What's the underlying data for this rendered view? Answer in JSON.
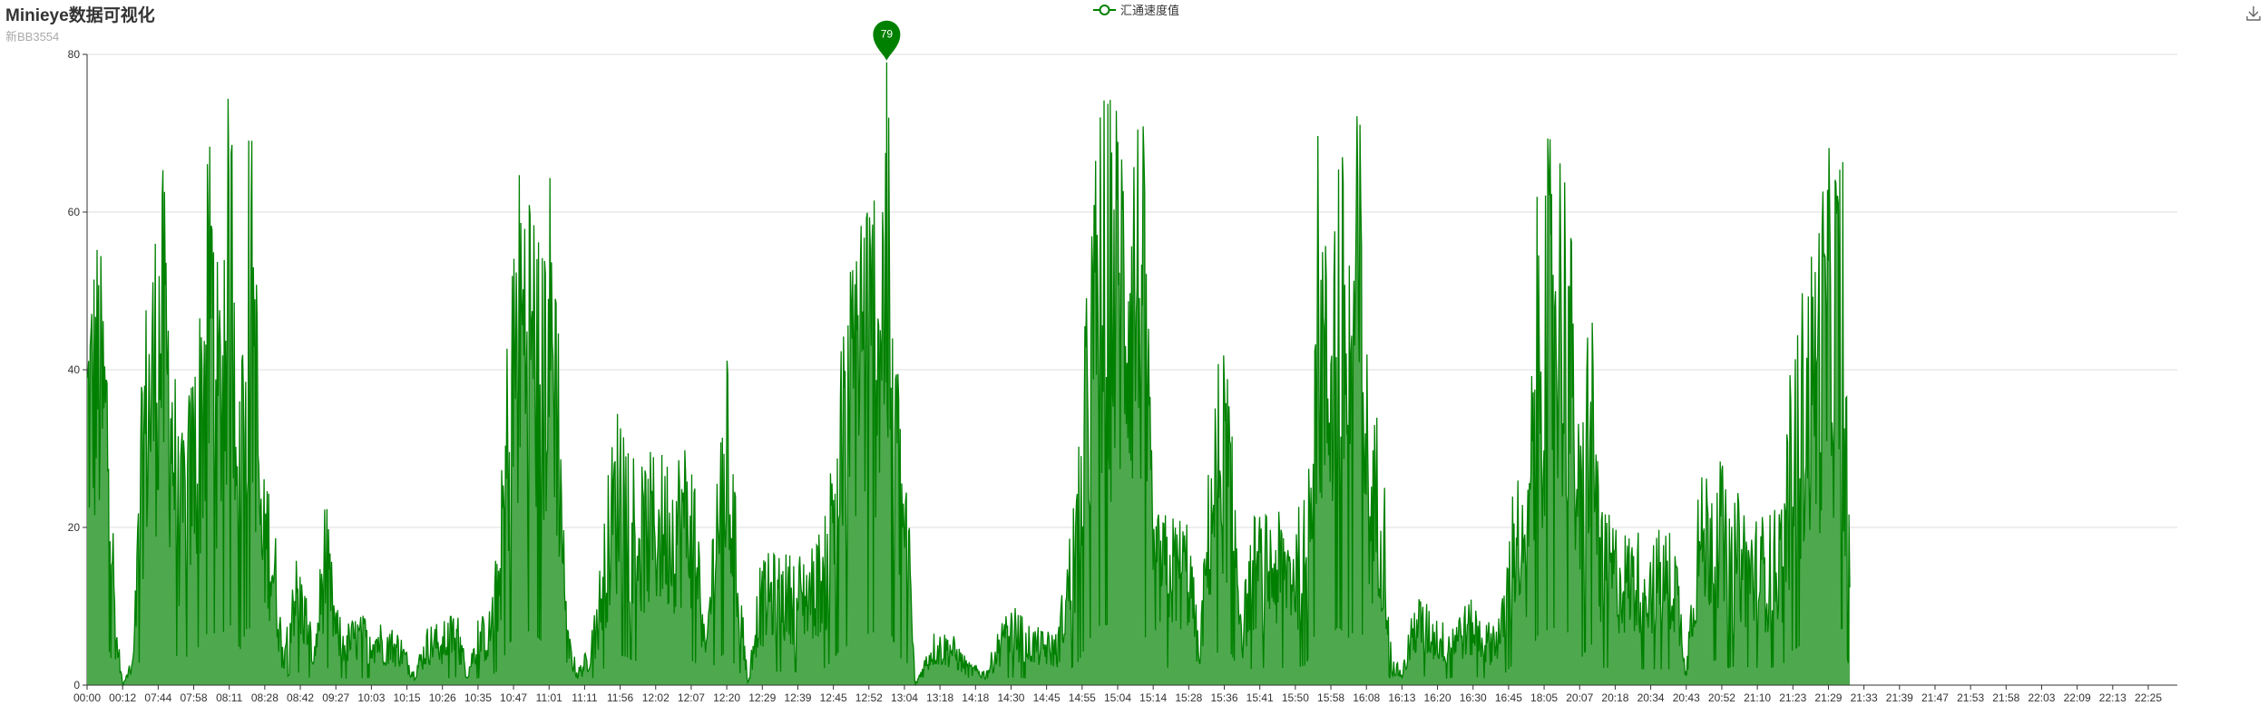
{
  "title": "Minieye数据可视化",
  "subtitle": "新BB3554",
  "legend": {
    "label": "汇通速度值"
  },
  "toolbox": {
    "icon": "download-icon"
  },
  "colors": {
    "line": "#008000",
    "area": "#4ea94e",
    "grid": "#dddddd",
    "axis": "#333333"
  },
  "chart_data": {
    "type": "area",
    "title": "Minieye数据可视化",
    "subtitle": "新BB3554",
    "series": [
      {
        "name": "汇通速度值"
      }
    ],
    "ylim": [
      0,
      80
    ],
    "yticks": [
      0,
      20,
      40,
      60,
      80
    ],
    "grid": "horizontal",
    "legend_position": "top-center",
    "x_ticks": [
      "00:00",
      "00:12",
      "07:44",
      "07:58",
      "08:11",
      "08:28",
      "08:42",
      "09:27",
      "10:03",
      "10:15",
      "10:26",
      "10:35",
      "10:47",
      "11:01",
      "11:11",
      "11:56",
      "12:02",
      "12:07",
      "12:20",
      "12:29",
      "12:39",
      "12:45",
      "12:52",
      "13:04",
      "13:18",
      "14:18",
      "14:30",
      "14:45",
      "14:55",
      "15:04",
      "15:14",
      "15:28",
      "15:36",
      "15:41",
      "15:50",
      "15:58",
      "16:08",
      "16:13",
      "16:20",
      "16:30",
      "16:45",
      "18:05",
      "20:07",
      "20:18",
      "20:34",
      "20:43",
      "20:52",
      "21:10",
      "21:23",
      "21:29",
      "21:33",
      "21:39",
      "21:47",
      "21:53",
      "21:58",
      "22:03",
      "22:09",
      "22:13",
      "22:25"
    ],
    "envelope": [
      [
        0,
        52
      ],
      [
        0.3,
        59
      ],
      [
        0.6,
        47
      ],
      [
        0.8,
        10
      ],
      [
        1.0,
        0
      ],
      [
        1.3,
        4
      ],
      [
        1.6,
        48
      ],
      [
        1.9,
        60
      ],
      [
        2.1,
        68
      ],
      [
        2.3,
        57
      ],
      [
        2.6,
        30
      ],
      [
        2.9,
        39
      ],
      [
        3.2,
        51
      ],
      [
        3.5,
        76
      ],
      [
        3.7,
        50
      ],
      [
        3.9,
        75
      ],
      [
        4.1,
        76
      ],
      [
        4.3,
        44
      ],
      [
        4.5,
        73
      ],
      [
        4.7,
        70
      ],
      [
        4.9,
        26
      ],
      [
        5.1,
        28
      ],
      [
        5.3,
        20
      ],
      [
        5.5,
        5
      ],
      [
        5.8,
        18
      ],
      [
        6.1,
        14
      ],
      [
        6.4,
        5
      ],
      [
        6.7,
        25
      ],
      [
        7.0,
        10
      ],
      [
        7.3,
        8
      ],
      [
        7.6,
        9
      ],
      [
        8.0,
        9
      ],
      [
        8.4,
        8
      ],
      [
        8.8,
        7
      ],
      [
        9.2,
        2
      ],
      [
        9.6,
        8
      ],
      [
        10.0,
        8
      ],
      [
        10.4,
        10
      ],
      [
        10.7,
        2
      ],
      [
        11.0,
        9
      ],
      [
        11.3,
        9
      ],
      [
        11.6,
        20
      ],
      [
        11.9,
        55
      ],
      [
        12.2,
        69
      ],
      [
        12.5,
        68
      ],
      [
        12.8,
        55
      ],
      [
        13.0,
        68
      ],
      [
        13.2,
        60
      ],
      [
        13.5,
        8
      ],
      [
        13.8,
        2
      ],
      [
        14.1,
        5
      ],
      [
        14.4,
        14
      ],
      [
        14.7,
        29
      ],
      [
        15.0,
        39
      ],
      [
        15.3,
        33
      ],
      [
        15.6,
        28
      ],
      [
        15.9,
        30
      ],
      [
        16.2,
        30
      ],
      [
        16.5,
        30
      ],
      [
        16.8,
        32
      ],
      [
        17.1,
        30
      ],
      [
        17.4,
        5
      ],
      [
        17.7,
        30
      ],
      [
        18.0,
        43
      ],
      [
        18.3,
        20
      ],
      [
        18.6,
        0
      ],
      [
        18.9,
        15
      ],
      [
        19.2,
        17
      ],
      [
        19.6,
        17
      ],
      [
        20.0,
        17
      ],
      [
        20.4,
        18
      ],
      [
        20.8,
        22
      ],
      [
        21.1,
        40
      ],
      [
        21.4,
        50
      ],
      [
        21.7,
        68
      ],
      [
        22.0,
        65
      ],
      [
        22.3,
        70
      ],
      [
        22.5,
        79
      ],
      [
        22.7,
        55
      ],
      [
        22.9,
        34
      ],
      [
        23.1,
        27
      ],
      [
        23.3,
        0
      ],
      [
        23.8,
        7
      ],
      [
        24.3,
        7
      ],
      [
        24.8,
        3
      ],
      [
        25.3,
        2
      ],
      [
        25.7,
        8
      ],
      [
        26.1,
        10
      ],
      [
        26.5,
        8
      ],
      [
        26.9,
        7
      ],
      [
        27.3,
        7
      ],
      [
        27.6,
        18
      ],
      [
        27.9,
        30
      ],
      [
        28.2,
        58
      ],
      [
        28.5,
        76
      ],
      [
        28.8,
        76
      ],
      [
        29.1,
        76
      ],
      [
        29.4,
        75
      ],
      [
        29.7,
        75
      ],
      [
        30.0,
        22
      ],
      [
        30.3,
        22
      ],
      [
        30.7,
        22
      ],
      [
        31.0,
        22
      ],
      [
        31.3,
        5
      ],
      [
        31.6,
        32
      ],
      [
        31.9,
        45
      ],
      [
        32.2,
        39
      ],
      [
        32.5,
        10
      ],
      [
        32.8,
        22
      ],
      [
        33.1,
        22
      ],
      [
        33.4,
        22
      ],
      [
        33.7,
        22
      ],
      [
        34.0,
        22
      ],
      [
        34.3,
        25
      ],
      [
        34.6,
        73
      ],
      [
        34.9,
        55
      ],
      [
        35.2,
        74
      ],
      [
        35.5,
        60
      ],
      [
        35.8,
        77
      ],
      [
        36.1,
        31
      ],
      [
        36.3,
        36
      ],
      [
        36.5,
        28
      ],
      [
        36.7,
        4
      ],
      [
        37.0,
        2
      ],
      [
        37.4,
        12
      ],
      [
        37.8,
        10
      ],
      [
        38.2,
        8
      ],
      [
        38.6,
        10
      ],
      [
        39.0,
        11
      ],
      [
        39.4,
        8
      ],
      [
        39.8,
        10
      ],
      [
        40.2,
        30
      ],
      [
        40.5,
        20
      ],
      [
        40.8,
        62
      ],
      [
        41.1,
        70
      ],
      [
        41.4,
        74
      ],
      [
        41.7,
        66
      ],
      [
        42.0,
        30
      ],
      [
        42.3,
        55
      ],
      [
        42.6,
        22
      ],
      [
        42.9,
        22
      ],
      [
        43.2,
        20
      ],
      [
        43.5,
        20
      ],
      [
        43.8,
        20
      ],
      [
        44.1,
        20
      ],
      [
        44.4,
        20
      ],
      [
        44.7,
        20
      ],
      [
        45.0,
        2
      ],
      [
        45.3,
        25
      ],
      [
        45.6,
        29
      ],
      [
        45.9,
        32
      ],
      [
        46.2,
        22
      ],
      [
        46.5,
        25
      ],
      [
        46.8,
        22
      ],
      [
        47.1,
        22
      ],
      [
        47.4,
        22
      ],
      [
        47.7,
        25
      ],
      [
        48.0,
        45
      ],
      [
        48.3,
        52
      ],
      [
        48.6,
        58
      ],
      [
        48.9,
        67
      ],
      [
        49.2,
        70
      ],
      [
        49.4,
        72
      ],
      [
        49.6,
        16
      ]
    ],
    "ymax_marker": {
      "value": 79,
      "label": "79"
    }
  }
}
